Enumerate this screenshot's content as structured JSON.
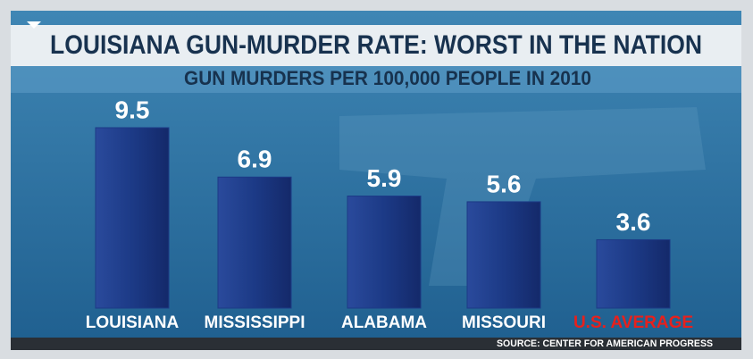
{
  "chart_data": {
    "type": "bar",
    "title": "LOUISIANA GUN-MURDER RATE: WORST IN THE NATION",
    "subtitle": "GUN MURDERS PER 100,000 PEOPLE IN 2010",
    "source": "SOURCE: CENTER FOR AMERICAN PROGRESS",
    "categories": [
      "LOUISIANA",
      "MISSISSIPPI",
      "ALABAMA",
      "MISSOURI",
      "U.S. AVERAGE"
    ],
    "values": [
      9.5,
      6.9,
      5.9,
      5.6,
      3.6
    ],
    "color": "#1c3a86",
    "category_label_colors": [
      "#ffffff",
      "#ffffff",
      "#ffffff",
      "#ffffff",
      "#e8201c"
    ]
  }
}
